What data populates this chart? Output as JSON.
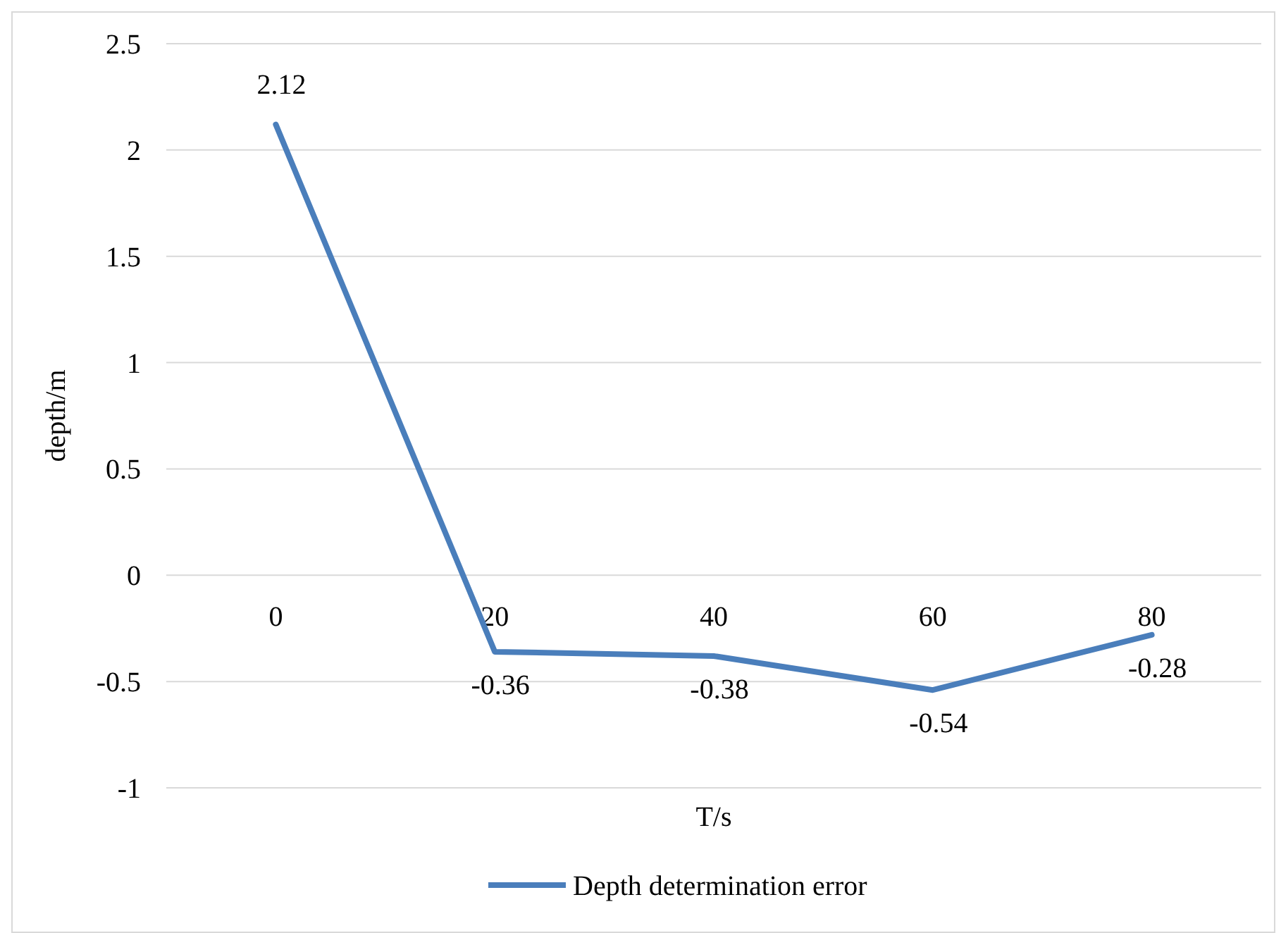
{
  "chart_data": {
    "type": "line",
    "xlabel": "T/s",
    "ylabel": "depth/m",
    "categories": [
      "0",
      "20",
      "40",
      "60",
      "80"
    ],
    "series": [
      {
        "name": "Depth determination error",
        "color": "#4a7ebb",
        "values": [
          2.12,
          -0.36,
          -0.38,
          -0.54,
          -0.28
        ]
      }
    ],
    "ylim": [
      -1,
      2.5
    ],
    "yticks": [
      -1,
      -0.5,
      0,
      0.5,
      1,
      1.5,
      2,
      2.5
    ],
    "grid": "y",
    "legend": "bottom",
    "data_labels": true,
    "marker": "none",
    "line_style": "solid"
  }
}
